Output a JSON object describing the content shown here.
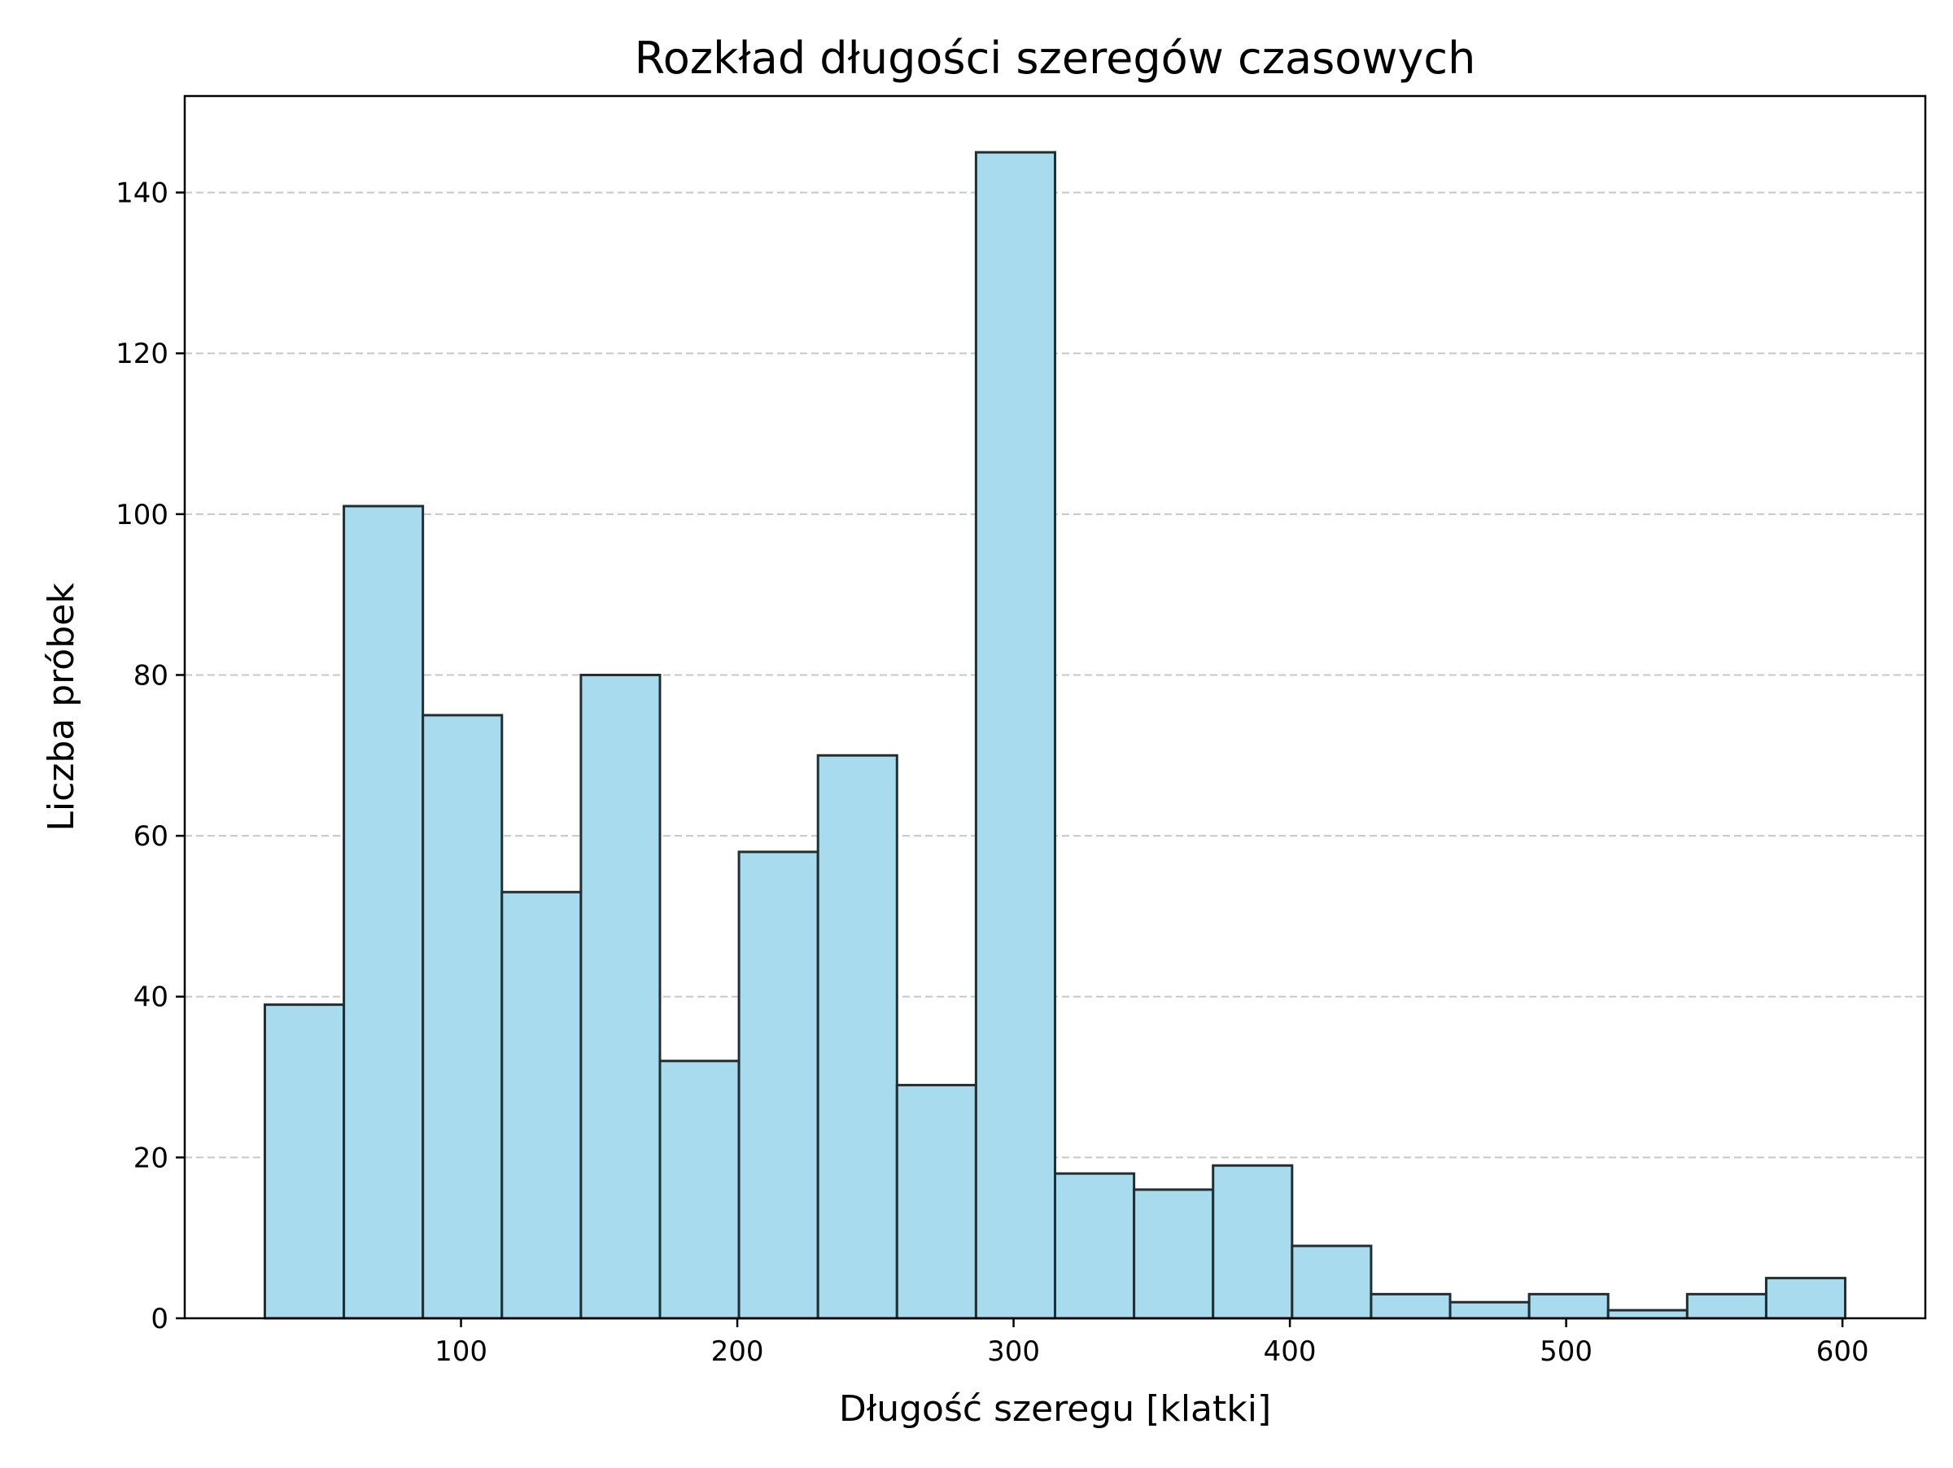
{
  "chart_data": {
    "type": "bar",
    "title": "Rozkład długości szeregów czasowych",
    "xlabel": "Długość szeregu [klatki]",
    "ylabel": "Liczba próbek",
    "xlim": [
      0,
      630
    ],
    "ylim": [
      0,
      152
    ],
    "x_ticks": [
      100,
      200,
      300,
      400,
      500,
      600
    ],
    "y_ticks": [
      0,
      20,
      40,
      60,
      80,
      100,
      120,
      140
    ],
    "grid": {
      "axis": "y",
      "style": "dashed",
      "color": "#c8c8c8"
    },
    "bar_fill": "#a8dbee",
    "bar_edge": "#1f2f33",
    "bins": [
      {
        "x0": 29.0,
        "x1": 57.6,
        "value": 39
      },
      {
        "x0": 57.6,
        "x1": 86.2,
        "value": 101
      },
      {
        "x0": 86.2,
        "x1": 114.8,
        "value": 75
      },
      {
        "x0": 114.8,
        "x1": 143.4,
        "value": 53
      },
      {
        "x0": 143.4,
        "x1": 172.0,
        "value": 80
      },
      {
        "x0": 172.0,
        "x1": 200.6,
        "value": 32
      },
      {
        "x0": 200.6,
        "x1": 229.2,
        "value": 58
      },
      {
        "x0": 229.2,
        "x1": 257.8,
        "value": 70
      },
      {
        "x0": 257.8,
        "x1": 286.4,
        "value": 29
      },
      {
        "x0": 286.4,
        "x1": 315.0,
        "value": 145
      },
      {
        "x0": 315.0,
        "x1": 343.6,
        "value": 18
      },
      {
        "x0": 343.6,
        "x1": 372.2,
        "value": 16
      },
      {
        "x0": 372.2,
        "x1": 400.8,
        "value": 19
      },
      {
        "x0": 400.8,
        "x1": 429.4,
        "value": 9
      },
      {
        "x0": 429.4,
        "x1": 458.0,
        "value": 3
      },
      {
        "x0": 458.0,
        "x1": 486.6,
        "value": 2
      },
      {
        "x0": 486.6,
        "x1": 515.2,
        "value": 3
      },
      {
        "x0": 515.2,
        "x1": 543.8,
        "value": 1
      },
      {
        "x0": 543.8,
        "x1": 572.4,
        "value": 3
      },
      {
        "x0": 572.4,
        "x1": 601.0,
        "value": 5
      }
    ]
  }
}
